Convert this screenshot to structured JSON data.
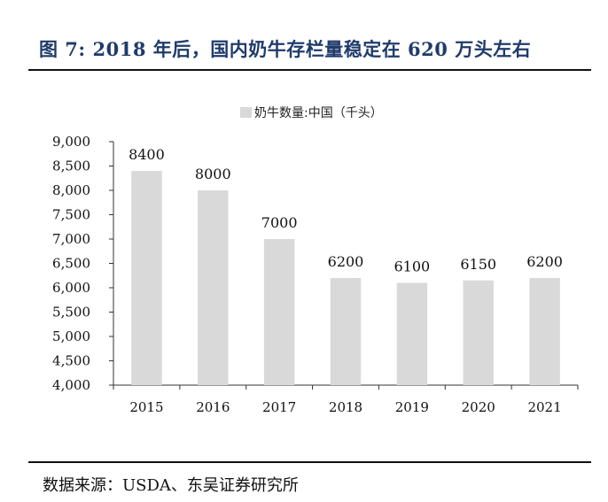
{
  "header": {
    "title": "图 7: 2018 年后，国内奶牛存栏量稳定在 620 万头左右"
  },
  "footer": {
    "source": "数据来源：USDA、东吴证券研究所"
  },
  "colors": {
    "bar": "#d9d9d9",
    "axis": "#333333",
    "title": "#1f3b6b"
  },
  "chart_data": {
    "type": "bar",
    "categories": [
      "2015",
      "2016",
      "2017",
      "2018",
      "2019",
      "2020",
      "2021"
    ],
    "series": [
      {
        "name": "奶牛数量:中国（千头）",
        "values": [
          8400,
          8000,
          7000,
          6200,
          6100,
          6150,
          6200
        ]
      }
    ],
    "ylim": [
      4000,
      9000
    ],
    "yticks": [
      4000,
      4500,
      5000,
      5500,
      6000,
      6500,
      7000,
      7500,
      8000,
      8500,
      9000
    ],
    "ytick_labels": [
      "4,000",
      "4,500",
      "5,000",
      "5,500",
      "6,000",
      "6,500",
      "7,000",
      "7,500",
      "8,000",
      "8,500",
      "9,000"
    ],
    "data_labels": [
      "8400",
      "8000",
      "7000",
      "6200",
      "6100",
      "6150",
      "6200"
    ],
    "legend": "top-center",
    "grid": false
  }
}
